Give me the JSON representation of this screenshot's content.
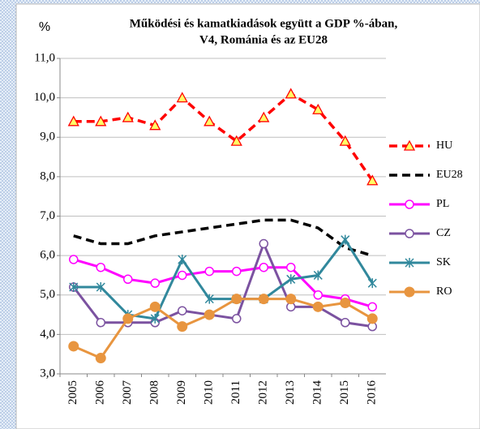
{
  "chart_data": {
    "type": "line",
    "title": [
      "Működési és kamatkiadások együtt a  GDP %-ában,",
      "V4, Románia és az EU28"
    ],
    "ylabel": "%",
    "categories": [
      "2005",
      "2006",
      "2007",
      "2008",
      "2009",
      "2010",
      "2011",
      "2012",
      "2013",
      "2014",
      "2015",
      "2016"
    ],
    "ylim": [
      3,
      11
    ],
    "yticks": [
      {
        "value": 3,
        "label": "3,0"
      },
      {
        "value": 4,
        "label": "4,0"
      },
      {
        "value": 5,
        "label": "5,0"
      },
      {
        "value": 6,
        "label": "6,0"
      },
      {
        "value": 7,
        "label": "7,0"
      },
      {
        "value": 8,
        "label": "8,0"
      },
      {
        "value": 9,
        "label": "9,0"
      },
      {
        "value": 10,
        "label": "10,0"
      },
      {
        "value": 11,
        "label": "11,0"
      }
    ],
    "grid": true,
    "legend": "right",
    "series": [
      {
        "name": "HU",
        "color": "#ff0000",
        "dashed": true,
        "marker": "triangle",
        "values": [
          9.4,
          9.4,
          9.5,
          9.3,
          10.0,
          9.4,
          8.9,
          9.5,
          10.1,
          9.7,
          8.9,
          7.9
        ]
      },
      {
        "name": "EU28",
        "color": "#000000",
        "dashed": true,
        "marker": "none",
        "values": [
          6.5,
          6.3,
          6.3,
          6.5,
          6.6,
          6.7,
          6.8,
          6.9,
          6.9,
          6.7,
          6.2,
          6.0
        ]
      },
      {
        "name": "PL",
        "color": "#ff00ff",
        "dashed": false,
        "marker": "open-circle",
        "values": [
          5.9,
          5.7,
          5.4,
          5.3,
          5.5,
          5.6,
          5.6,
          5.7,
          5.7,
          5.0,
          4.9,
          4.7
        ]
      },
      {
        "name": "CZ",
        "color": "#7b52a0",
        "dashed": false,
        "marker": "open-circle",
        "values": [
          5.2,
          4.3,
          4.3,
          4.3,
          4.6,
          4.5,
          4.4,
          6.3,
          4.7,
          4.7,
          4.3,
          4.2
        ]
      },
      {
        "name": "SK",
        "color": "#31889c",
        "dashed": false,
        "marker": "star",
        "values": [
          5.2,
          5.2,
          4.5,
          4.4,
          5.9,
          4.9,
          4.9,
          4.9,
          5.4,
          5.5,
          6.4,
          5.3
        ]
      },
      {
        "name": "RO",
        "color": "#e8953f",
        "dashed": false,
        "marker": "circle",
        "values": [
          3.7,
          3.4,
          4.4,
          4.7,
          4.2,
          4.5,
          4.9,
          4.9,
          4.9,
          4.7,
          4.8,
          4.4
        ]
      }
    ]
  }
}
